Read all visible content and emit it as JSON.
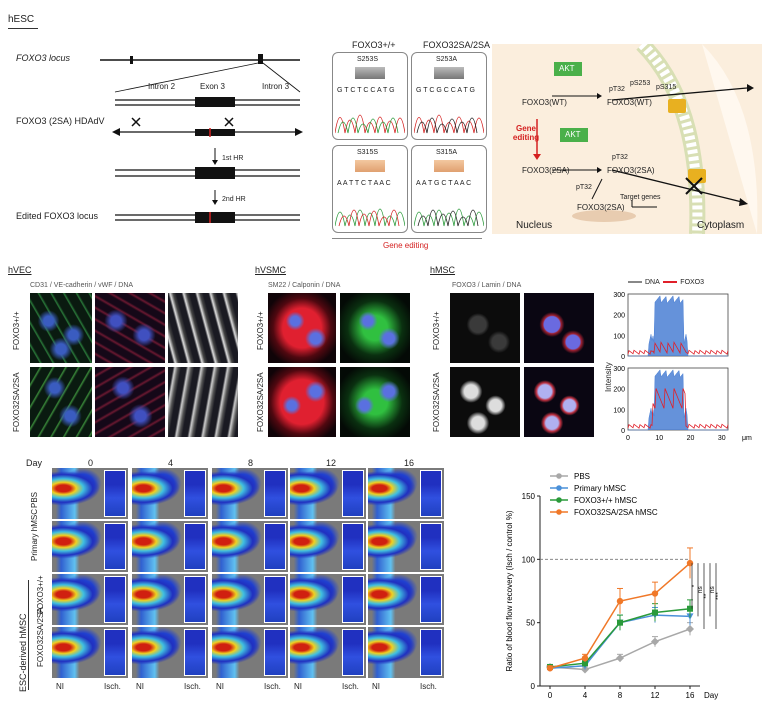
{
  "section_a": {
    "title": "hESC",
    "locus_label": "FOXO3 locus",
    "hdadv_label": "FOXO3 (2SA) HDAdV",
    "edited_label": "Edited FOXO3 locus",
    "intron2": "Intron 2",
    "exon3": "Exon 3",
    "intron3": "Intron 3",
    "hr1": "1st HR",
    "hr2": "2nd HR"
  },
  "sequencing": {
    "wt_header": "FOXO3+/+",
    "mut_header": "FOXO32SA/2SA",
    "boxes": [
      {
        "site": "S253S",
        "aa": [
          "V",
          "S",
          "M"
        ],
        "seq": "G T C T C C A T G"
      },
      {
        "site": "S253A",
        "aa": [
          "V",
          "A",
          "M"
        ],
        "seq": "G T C G C C A T G"
      },
      {
        "site": "S315S",
        "aa": [
          "N",
          "S",
          "N"
        ],
        "seq": "A A T T C T A A C"
      },
      {
        "site": "S315A",
        "aa": [
          "N",
          "A",
          "N"
        ],
        "seq": "A A T G C T A A C"
      }
    ],
    "gene_editing_label": "Gene editing"
  },
  "pathway": {
    "akt": "AKT",
    "wt": "FOXO3(WT)",
    "wt2": "FOXO3(WT)",
    "sa1": "FOXO3(2SA)",
    "sa2": "FOXO3(2SA)",
    "sa3": "FOXO3(2SA)",
    "pt32a": "pT32",
    "ps253": "pS253",
    "ps315": "pS315",
    "pt32b": "pT32",
    "pt32c": "pT32",
    "gene_editing": "Gene editing",
    "target_genes": "Target genes",
    "nucleus": "Nucleus",
    "cytoplasm": "Cytoplasm"
  },
  "micrographs": {
    "hvec_title": "hVEC",
    "hvec_stain": "CD31 / VE-cadherin / vWF / DNA",
    "hvsmc_title": "hVSMC",
    "hvsmc_stain": "SM22 / Calponin / DNA",
    "hmsc_title": "hMSC",
    "hmsc_stain": "FOXO3 / Lamin / DNA",
    "row_wt": "FOXO3+/+",
    "row_mut": "FOXO32SA/2SA"
  },
  "intensity_chart": {
    "legend_dna": "DNA",
    "legend_foxo3": "FOXO3",
    "ylabel": "Intensity",
    "xlabel": "μm",
    "yticks": [
      "300",
      "200",
      "100",
      "0"
    ],
    "xticks": [
      "0",
      "10",
      "20",
      "30"
    ],
    "color_dna": "#4a7fd4",
    "color_foxo3": "#e0202a"
  },
  "doppler": {
    "day_label": "Day",
    "days": [
      "0",
      "4",
      "8",
      "12",
      "16"
    ],
    "rows": [
      "PBS",
      "Primary hMSC",
      "FOXO3+/+",
      "FOXO32SA/2SA"
    ],
    "group_label": "ESC-derived hMSC",
    "ni": "NI",
    "isch": "Isch."
  },
  "chart_data": {
    "type": "line",
    "x": [
      0,
      4,
      8,
      12,
      16
    ],
    "xlabel": "Day",
    "ylabel": "Ratio of blood flow recovery (Isch / control %)",
    "ylim": [
      0,
      150
    ],
    "yticks": [
      0,
      50,
      100,
      150
    ],
    "xticks": [
      0,
      4,
      8,
      12,
      16
    ],
    "reference_line": 100,
    "series": [
      {
        "name": "PBS",
        "values": [
          15,
          13,
          22,
          35,
          45
        ],
        "err": [
          2,
          2,
          3,
          4,
          5
        ],
        "color": "#a8a8a8",
        "marker": "diamond"
      },
      {
        "name": "Primary hMSC",
        "values": [
          14,
          16,
          50,
          56,
          55
        ],
        "err": [
          2,
          3,
          6,
          6,
          7
        ],
        "color": "#4a90d9",
        "marker": "triangle"
      },
      {
        "name": "FOXO3+/+ hMSC",
        "values": [
          15,
          18,
          50,
          58,
          61
        ],
        "err": [
          2,
          3,
          6,
          7,
          7
        ],
        "color": "#2a9a3a",
        "marker": "square"
      },
      {
        "name": "FOXO32SA/2SA hMSC",
        "values": [
          14,
          22,
          67,
          73,
          97
        ],
        "err": [
          2,
          3,
          10,
          9,
          12
        ],
        "color": "#f07828",
        "marker": "circle"
      }
    ],
    "significance": [
      "*",
      "ns",
      "**",
      "ns",
      "***"
    ]
  }
}
